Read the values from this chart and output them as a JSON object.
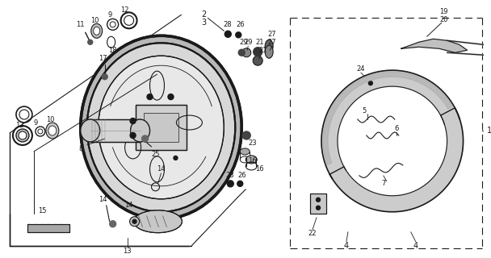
{
  "bg_color": "#ffffff",
  "fg_color": "#1a1a1a",
  "fig_width": 6.08,
  "fig_height": 3.2,
  "dpi": 100
}
